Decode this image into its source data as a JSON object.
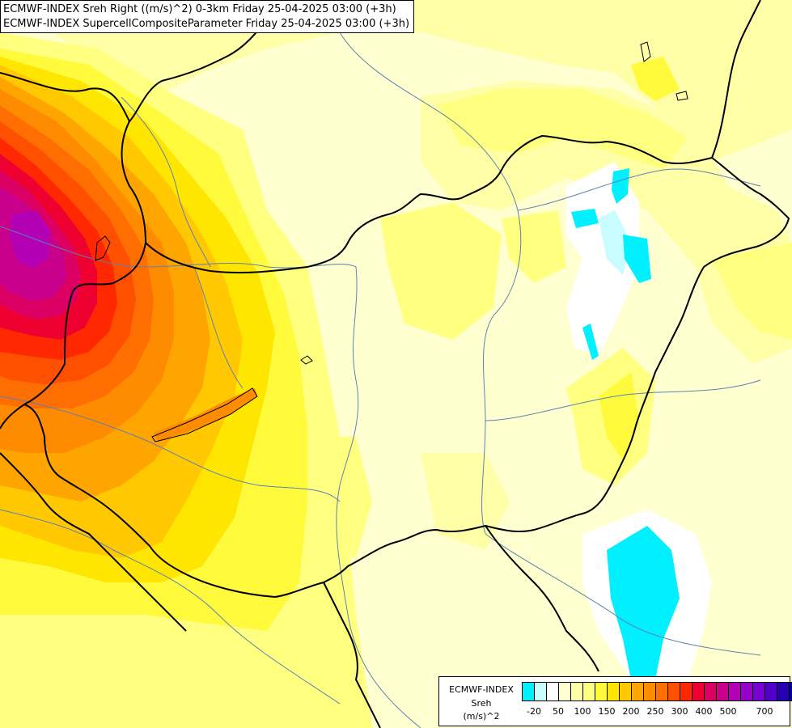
{
  "title": {
    "line1": "ECMWF-INDEX Sreh Right ((m/s)^2) 0-3km Friday 25-04-2025 03:00 (+3h)",
    "line2": "ECMWF-INDEX SupercellCompositeParameter Friday 25-04-2025 03:00 (+3h)"
  },
  "legend": {
    "model": "ECMWF-INDEX",
    "parameter": "Sreh",
    "unit": "(m/s)^2",
    "colors": [
      "#00f0ff",
      "#c8fcff",
      "#ffffff",
      "#ffffd0",
      "#ffffa8",
      "#ffff80",
      "#fffa3c",
      "#ffe600",
      "#ffc800",
      "#ffa500",
      "#ff8c00",
      "#ff6e00",
      "#ff5000",
      "#ff2800",
      "#ee0030",
      "#dc0064",
      "#c8008c",
      "#b400b4",
      "#9600c8",
      "#7800d2",
      "#5000c8",
      "#2800b4",
      "#000096"
    ],
    "tick_labels": [
      "-20",
      "50",
      "100",
      "150",
      "200",
      "250",
      "300",
      "400",
      "500",
      "700"
    ]
  },
  "map": {
    "field": "storm relative helicity 0-3km",
    "max_region": "west (Austria)",
    "features": [
      "country borders",
      "rivers",
      "lakes"
    ]
  }
}
